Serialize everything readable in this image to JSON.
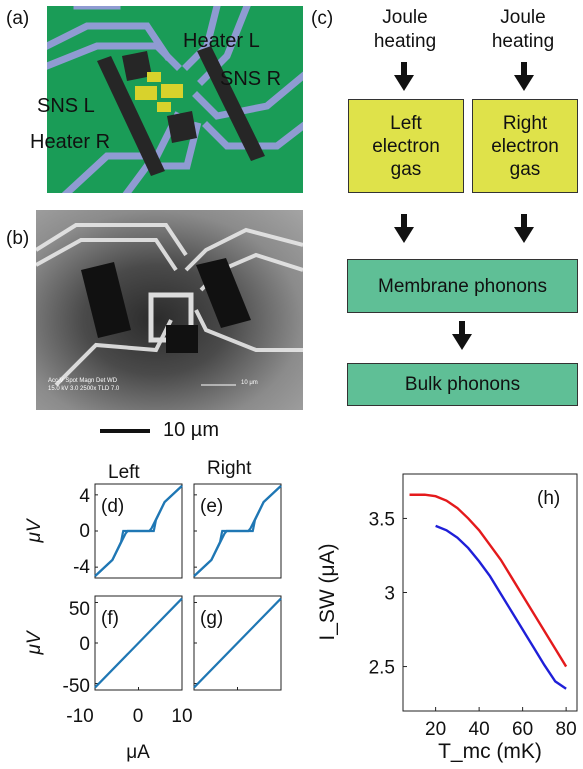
{
  "panels": {
    "a": "(a)",
    "b": "(b)",
    "c": "(c)",
    "d": "(d)",
    "e": "(e)",
    "f": "(f)",
    "g": "(g)",
    "h": "(h)"
  },
  "device": {
    "heater_l": "Heater L",
    "sns_r": "SNS R",
    "sns_l": "SNS L",
    "heater_r": "Heater R",
    "colors": {
      "substrate": "#1a9c57",
      "lead": "#8f9bd2",
      "heater": "#262626",
      "sns": "#d8d22c"
    }
  },
  "sem": {
    "info_line1": "Acc.V  Spot Magn   Det  WD",
    "info_line2": "15.0 kV 3.0   2500x   TLD 7.0",
    "scale_text": "10 μm"
  },
  "scalebar_label": "10 µm",
  "flow": {
    "top_left": "Joule\nheating",
    "top_right": "Joule\nheating",
    "left_box": "Left\nelectron\ngas",
    "right_box": "Right\nelectron\ngas",
    "membrane": "Membrane phonons",
    "bulk": "Bulk phonons",
    "colors": {
      "electron": "#dfe24a",
      "phonon": "#5fbf96"
    }
  },
  "iv": {
    "col_left": "Left",
    "col_right": "Right",
    "ylabel_top": "μV",
    "ylabel_bottom": "μV",
    "xlabel": "μA",
    "xticks": [
      "-10",
      "0",
      "10"
    ],
    "yticks_top": [
      "4",
      "0",
      "-4"
    ],
    "yticks_bottom": [
      "50",
      "0",
      "-50"
    ]
  },
  "chart_data": [
    {
      "type": "line",
      "panel": "(d)",
      "x": [
        -10,
        -6,
        -3,
        -2.5,
        2.5,
        3,
        6,
        10
      ],
      "y": [
        -5,
        -3.2,
        -0.3,
        0,
        0,
        0.3,
        3.2,
        5
      ],
      "ylim": [
        -5.2,
        5.2
      ],
      "xlim": [
        -10,
        10
      ],
      "color": "#1f77b4"
    },
    {
      "type": "line",
      "panel": "(e)",
      "x": [
        -10,
        -6,
        -3,
        -2.5,
        2.5,
        3,
        6,
        10
      ],
      "y": [
        -5,
        -3.2,
        -0.3,
        0,
        0,
        0.3,
        3.2,
        5
      ],
      "ylim": [
        -5.2,
        5.2
      ],
      "xlim": [
        -10,
        10
      ],
      "color": "#1f77b4"
    },
    {
      "type": "line",
      "panel": "(f)",
      "x": [
        -10,
        10
      ],
      "y": [
        -55,
        55
      ],
      "ylim": [
        -58,
        58
      ],
      "xlim": [
        -10,
        10
      ],
      "color": "#1f77b4"
    },
    {
      "type": "line",
      "panel": "(g)",
      "x": [
        -10,
        10
      ],
      "y": [
        -55,
        55
      ],
      "ylim": [
        -58,
        58
      ],
      "xlim": [
        -10,
        10
      ],
      "color": "#1f77b4"
    },
    {
      "type": "line",
      "panel": "(h)",
      "xlabel": "T_mc (mK)",
      "ylabel": "I_SW (μA)",
      "xlim": [
        5,
        85
      ],
      "ylim": [
        2.2,
        3.8
      ],
      "xticks": [
        20,
        40,
        60,
        80
      ],
      "yticks": [
        2.5,
        3,
        3.5
      ],
      "series": [
        {
          "color": "#e41a1c",
          "x": [
            8,
            15,
            20,
            25,
            30,
            35,
            40,
            45,
            50,
            55,
            60,
            65,
            70,
            75,
            80
          ],
          "y": [
            3.66,
            3.66,
            3.65,
            3.62,
            3.57,
            3.5,
            3.42,
            3.32,
            3.22,
            3.1,
            2.98,
            2.86,
            2.74,
            2.62,
            2.5
          ]
        },
        {
          "color": "#1f1fd8",
          "x": [
            20,
            25,
            30,
            35,
            40,
            45,
            50,
            55,
            60,
            65,
            70,
            75,
            80
          ],
          "y": [
            3.45,
            3.42,
            3.37,
            3.3,
            3.21,
            3.11,
            2.99,
            2.87,
            2.75,
            2.63,
            2.51,
            2.4,
            2.35
          ]
        }
      ]
    }
  ]
}
